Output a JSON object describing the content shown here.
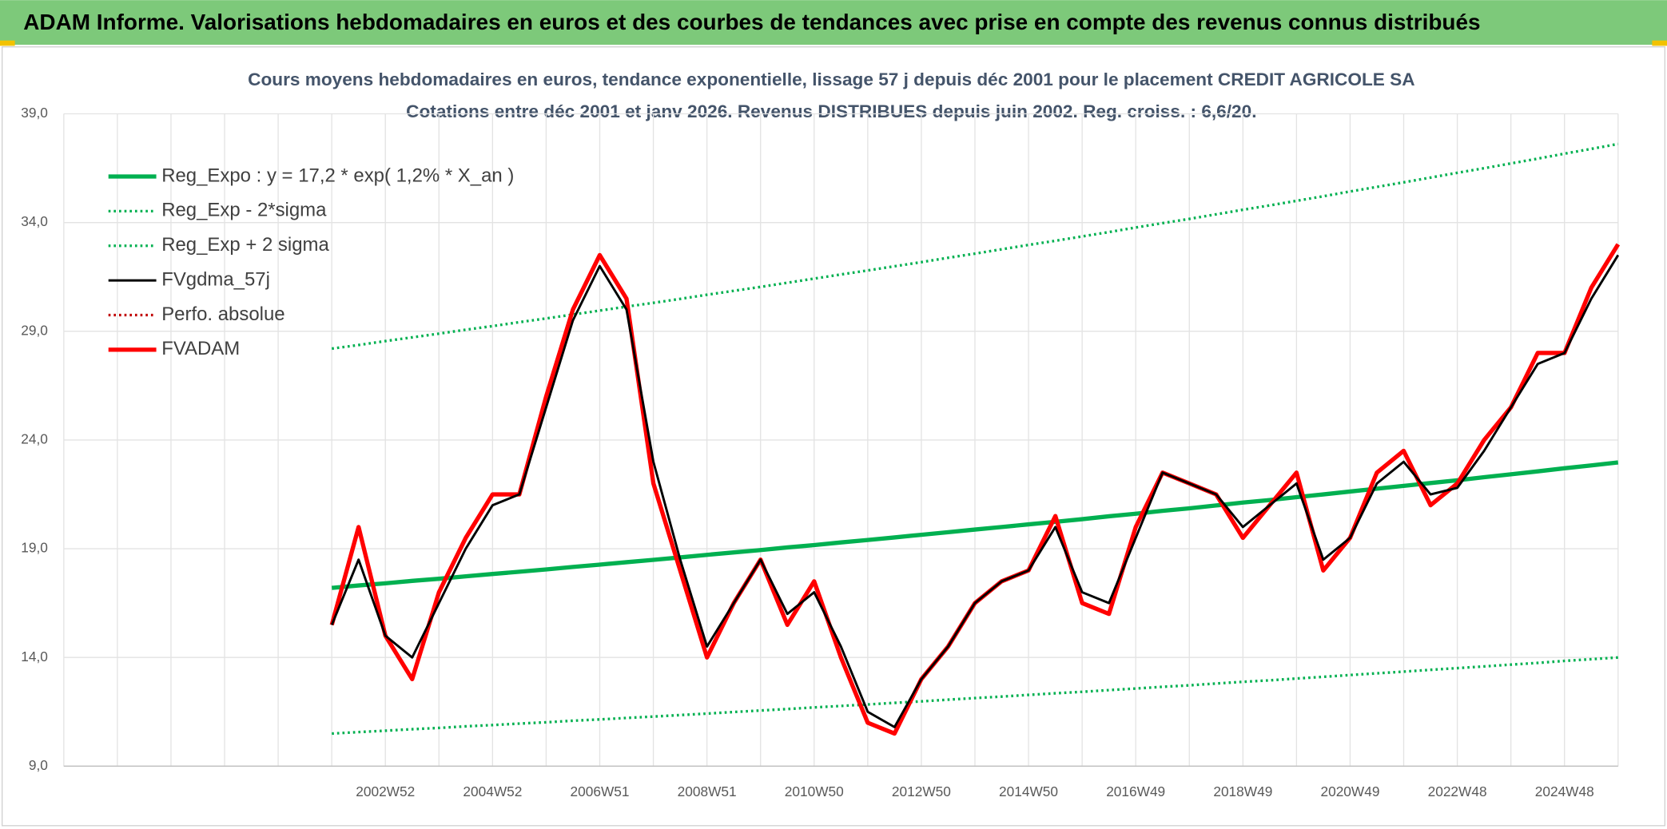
{
  "header": {
    "title": "ADAM Informe. Valorisations hebdomadaires en euros et des courbes de tendances avec prise en compte des revenus connus distribués"
  },
  "chart_data": {
    "type": "line",
    "title": "Cours moyens hebdomadaires en euros, tendance exponentielle, lissage 57 j depuis déc 2001 pour le placement CREDIT AGRICOLE SA",
    "subtitle": "Cotations entre déc 2001 et janv 2026. Revenus DISTRIBUES depuis juin 2002. Reg. croiss. : 6,6/20.",
    "categories": [
      null,
      null,
      null,
      null,
      null,
      null,
      null,
      null,
      null,
      null,
      null,
      null,
      "2002W52",
      null,
      null,
      null,
      "2004W52",
      null,
      null,
      null,
      "2006W51",
      null,
      null,
      null,
      "2008W51",
      null,
      null,
      null,
      "2010W50",
      null,
      null,
      null,
      "2012W50",
      null,
      null,
      null,
      "2014W50",
      null,
      null,
      null,
      "2016W49",
      null,
      null,
      null,
      "2018W49",
      null,
      null,
      null,
      "2020W49",
      null,
      null,
      null,
      "2022W48",
      null,
      null,
      null,
      "2024W48",
      null,
      null
    ],
    "ylim": [
      9,
      39
    ],
    "yticks": [
      {
        "value": 9,
        "label": "9,0"
      },
      {
        "value": 14,
        "label": "14,0"
      },
      {
        "value": 19,
        "label": "19,0"
      },
      {
        "value": 24,
        "label": "24,0"
      },
      {
        "value": 29,
        "label": "29,0"
      },
      {
        "value": 34,
        "label": "34,0"
      },
      {
        "value": 39,
        "label": "39,0"
      }
    ],
    "grid": true,
    "legend": "upper left",
    "series": [
      {
        "name": "Reg_Expo : y = 17,2 * exp( 1,2% *  X_an )",
        "color": "#00b050",
        "style": "thick",
        "values": [
          null,
          null,
          null,
          null,
          null,
          null,
          null,
          null,
          null,
          null,
          17.2,
          17.31,
          17.41,
          17.52,
          17.62,
          17.73,
          17.84,
          17.94,
          18.05,
          18.16,
          18.27,
          18.38,
          18.49,
          18.6,
          18.72,
          18.83,
          18.94,
          19.06,
          19.17,
          19.29,
          19.4,
          19.52,
          19.64,
          19.76,
          19.88,
          20.0,
          20.12,
          20.24,
          20.36,
          20.49,
          20.61,
          20.74,
          20.86,
          20.99,
          21.12,
          21.24,
          21.37,
          21.5,
          21.63,
          21.76,
          21.89,
          22.02,
          22.15,
          22.29,
          22.42,
          22.56,
          22.7,
          22.83,
          22.97
        ]
      },
      {
        "name": "Reg_Exp - 2*sigma",
        "color": "#00b050",
        "style": "dotted",
        "values": [
          null,
          null,
          null,
          null,
          null,
          null,
          null,
          null,
          null,
          null,
          10.5,
          10.57,
          10.63,
          10.7,
          10.76,
          10.83,
          10.89,
          10.96,
          11.02,
          11.09,
          11.15,
          11.22,
          11.28,
          11.35,
          11.42,
          11.49,
          11.56,
          11.63,
          11.7,
          11.77,
          11.84,
          11.91,
          11.98,
          12.06,
          12.13,
          12.2,
          12.28,
          12.35,
          12.42,
          12.5,
          12.57,
          12.65,
          12.72,
          12.8,
          12.88,
          12.95,
          13.03,
          13.11,
          13.19,
          13.27,
          13.35,
          13.43,
          13.51,
          13.59,
          13.67,
          13.75,
          13.84,
          13.92,
          14.0
        ]
      },
      {
        "name": "Reg_Exp + 2 sigma",
        "color": "#00b050",
        "style": "dotted",
        "values": [
          null,
          null,
          null,
          null,
          null,
          null,
          null,
          null,
          null,
          null,
          28.2,
          28.37,
          28.55,
          28.72,
          28.89,
          29.07,
          29.24,
          29.42,
          29.59,
          29.77,
          29.95,
          30.13,
          30.31,
          30.49,
          30.68,
          30.86,
          31.04,
          31.23,
          31.42,
          31.61,
          31.8,
          31.99,
          32.18,
          32.38,
          32.57,
          32.77,
          32.97,
          33.16,
          33.36,
          33.56,
          33.77,
          33.97,
          34.17,
          34.38,
          34.59,
          34.79,
          35.0,
          35.21,
          35.43,
          35.64,
          35.85,
          36.07,
          36.29,
          36.5,
          36.72,
          36.94,
          37.17,
          37.39,
          37.61
        ]
      },
      {
        "name": "FVgdma_57j",
        "color": "#000000",
        "style": "solid",
        "values": [
          null,
          null,
          null,
          null,
          null,
          null,
          null,
          null,
          null,
          null,
          15.5,
          18.5,
          15,
          14,
          16.5,
          19,
          21,
          21.5,
          25.5,
          29.5,
          32,
          30,
          23,
          18.5,
          14.5,
          16.5,
          18.5,
          16,
          17,
          14.5,
          11.5,
          10.8,
          13,
          14.5,
          16.5,
          17.5,
          18,
          20,
          17,
          16.5,
          19.5,
          22.5,
          22,
          21.5,
          20,
          21,
          22,
          18.5,
          19.5,
          22,
          23,
          21.5,
          21.8,
          23.5,
          25.5,
          27.5,
          28,
          30.5,
          32.5
        ]
      },
      {
        "name": "Perfo. absolue",
        "color": "#c00000",
        "style": "dotted",
        "values": [
          null,
          null,
          null,
          null,
          null,
          null,
          null,
          null,
          null,
          null,
          null,
          null,
          null,
          null,
          null,
          null,
          null,
          null,
          null,
          null,
          null,
          null,
          null,
          null,
          null,
          null,
          null,
          null,
          null,
          null,
          null,
          null,
          null,
          null,
          null,
          null,
          null,
          null,
          null,
          null,
          null,
          null,
          null,
          null,
          null,
          null,
          null,
          null,
          null,
          null,
          null,
          null,
          null,
          null,
          null,
          null,
          null,
          null,
          null
        ]
      },
      {
        "name": "FVADAM",
        "color": "#ff0000",
        "style": "thick",
        "values": [
          null,
          null,
          null,
          null,
          null,
          null,
          null,
          null,
          null,
          null,
          15.5,
          20,
          15,
          13,
          17,
          19.5,
          21.5,
          21.5,
          26,
          30,
          32.5,
          30.5,
          22,
          18,
          14,
          16.5,
          18.5,
          15.5,
          17.5,
          14,
          11,
          10.5,
          13,
          14.5,
          16.5,
          17.5,
          18,
          20.5,
          16.5,
          16,
          20,
          22.5,
          22,
          21.5,
          19.5,
          21,
          22.5,
          18,
          19.5,
          22.5,
          23.5,
          21,
          22,
          24,
          25.5,
          28,
          28,
          31,
          33
        ]
      }
    ]
  }
}
